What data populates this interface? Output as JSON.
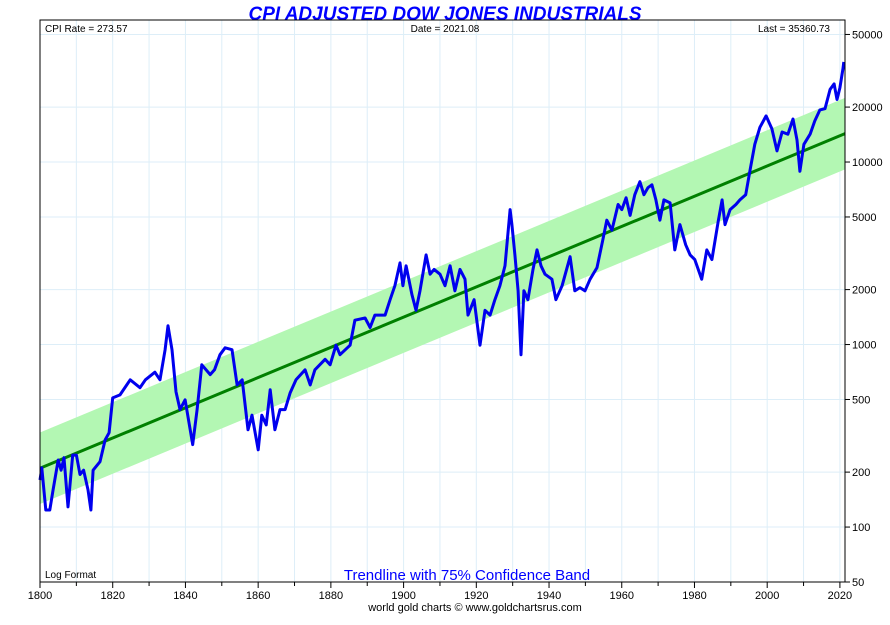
{
  "chart_data": {
    "type": "line",
    "title": "CPI ADJUSTED DOW JONES INDUSTRIALS",
    "header": {
      "cpi_rate": "CPI Rate = 273.57",
      "date": "Date = 2021.08",
      "last": "Last = 35360.73"
    },
    "log_label": "Log Format",
    "subtitle": "Trendline with 75% Confidence Band",
    "credit": "world gold charts © www.goldchartsrus.com",
    "xlabel": "",
    "ylabel": "",
    "yscale": "log",
    "xlim": [
      1800,
      2021.4
    ],
    "ylim": [
      50,
      60000
    ],
    "grid": true,
    "x_ticks": [
      "1800",
      "1820",
      "1840",
      "1860",
      "1880",
      "1900",
      "1920",
      "1940",
      "1960",
      "1980",
      "2000",
      "2020"
    ],
    "y_ticks": [
      "50000",
      "20000",
      "10000",
      "5000",
      "2000",
      "1000",
      "500",
      "200",
      "100",
      "50"
    ],
    "colors": {
      "series": "#0000ee",
      "trend": "#008000",
      "band": "#b3f7b3",
      "grid": "#ddeef8"
    },
    "trend": {
      "name": "Trendline",
      "x": [
        1800,
        2021.4
      ],
      "y": [
        210,
        14300
      ],
      "band_factor": 1.57,
      "band_label": "75% Confidence Band"
    },
    "series": [
      {
        "name": "CPI Adjusted Dow Jones Industrials",
        "x": [
          1800,
          1800.5,
          1801.6,
          1802.7,
          1803.6,
          1805,
          1805.8,
          1806.6,
          1807.7,
          1809,
          1810,
          1811,
          1812,
          1813.2,
          1814,
          1814.6,
          1816.5,
          1817.9,
          1819,
          1820,
          1822,
          1824.8,
          1827.5,
          1829,
          1831.6,
          1833,
          1834.4,
          1835.2,
          1836.3,
          1837.4,
          1838.5,
          1839.9,
          1841.3,
          1842,
          1843.2,
          1844.5,
          1846.8,
          1848,
          1849.5,
          1850.9,
          1852.8,
          1854.2,
          1855.6,
          1857.2,
          1858.3,
          1860,
          1861,
          1862.2,
          1863.3,
          1864.6,
          1866,
          1867.4,
          1868.8,
          1870.4,
          1872.9,
          1874.3,
          1875.6,
          1878.4,
          1879.8,
          1881.4,
          1882.5,
          1885.3,
          1886.6,
          1889.4,
          1890.8,
          1892.1,
          1894.9,
          1896.3,
          1897.6,
          1899,
          1899.8,
          1900.7,
          1902.3,
          1903.4,
          1904.5,
          1906.2,
          1907.3,
          1908.4,
          1910,
          1911.4,
          1912.8,
          1914.1,
          1915.5,
          1916.9,
          1917.7,
          1919.4,
          1921,
          1922.4,
          1923.8,
          1925.1,
          1926.5,
          1927.9,
          1929.3,
          1929.8,
          1930.6,
          1931.5,
          1932.3,
          1933.1,
          1934.2,
          1935.6,
          1936.7,
          1937.8,
          1938.9,
          1940.8,
          1941.9,
          1943.6,
          1945.8,
          1947.1,
          1948.5,
          1949.9,
          1951.3,
          1953.2,
          1954.8,
          1955.9,
          1957.3,
          1959,
          1960,
          1961.2,
          1962.3,
          1963.6,
          1965,
          1966.1,
          1967.2,
          1968.3,
          1969.4,
          1970.5,
          1971.6,
          1973.3,
          1974.6,
          1976,
          1977.6,
          1978.8,
          1980.1,
          1982,
          1983.4,
          1984.8,
          1986.5,
          1987.6,
          1988.4,
          1989.8,
          1991.4,
          1992.5,
          1994.1,
          1995.3,
          1996.6,
          1998,
          1999.7,
          2001.3,
          2002.7,
          2004.1,
          2005.7,
          2007.1,
          2008.2,
          2009,
          2010.1,
          2011.8,
          2013.1,
          2014.5,
          2015.9,
          2017.3,
          2018.4,
          2019.2,
          2020,
          2020.8,
          2021.08
        ],
        "y": [
          181,
          211,
          124,
          124,
          160,
          233,
          205,
          240,
          129,
          248,
          248,
          194,
          205,
          160,
          124,
          205,
          228,
          300,
          329,
          510,
          530,
          641,
          580,
          641,
          705,
          641,
          937,
          1268,
          937,
          551,
          440,
          498,
          341,
          283,
          440,
          774,
          684,
          727,
          880,
          960,
          937,
          601,
          641,
          341,
          410,
          265,
          410,
          363,
          565,
          341,
          440,
          440,
          545,
          641,
          727,
          601,
          727,
          830,
          774,
          992,
          880,
          992,
          1360,
          1398,
          1240,
          1450,
          1450,
          1760,
          2100,
          2800,
          2100,
          2700,
          1870,
          1540,
          1970,
          3100,
          2430,
          2580,
          2430,
          2100,
          2700,
          1970,
          2580,
          2280,
          1450,
          1760,
          992,
          1540,
          1450,
          1760,
          2100,
          2700,
          5490,
          4540,
          3100,
          1970,
          880,
          1970,
          1760,
          2580,
          3300,
          2700,
          2430,
          2280,
          1760,
          2100,
          3030,
          1970,
          2050,
          1970,
          2280,
          2640,
          3740,
          4800,
          4230,
          5850,
          5490,
          6370,
          5100,
          6620,
          7800,
          6620,
          7230,
          7500,
          6200,
          4800,
          6200,
          5970,
          3300,
          4540,
          3520,
          3100,
          2920,
          2280,
          3300,
          2920,
          4690,
          6200,
          4540,
          5490,
          5850,
          6200,
          6620,
          9050,
          12500,
          15500,
          17900,
          15200,
          11500,
          14600,
          14200,
          17200,
          13200,
          8900,
          12500,
          14200,
          16800,
          19300,
          19600,
          25000,
          26800,
          22000,
          25500,
          32000,
          35360.73
        ]
      }
    ]
  }
}
